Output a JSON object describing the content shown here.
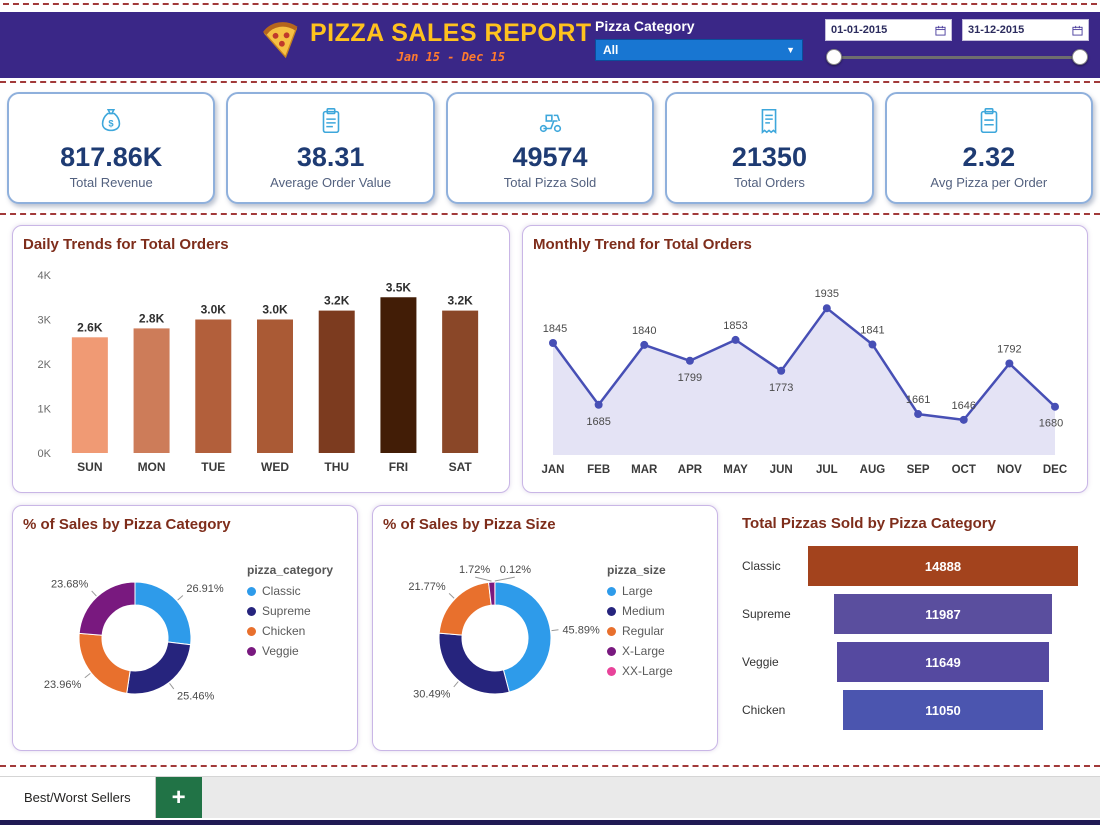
{
  "header": {
    "title": "PIZZA SALES REPORT",
    "subtitle": "Jan 15 - Dec 15",
    "category_label": "Pizza Category",
    "category_value": "All",
    "date_from": "01-01-2015",
    "date_to": "31-12-2015"
  },
  "kpis": [
    {
      "icon": "cash-register-icon",
      "value": "817.86K",
      "label": "Total Revenue"
    },
    {
      "icon": "clipboard-icon",
      "value": "38.31",
      "label": "Average Order Value"
    },
    {
      "icon": "delivery-scooter-icon",
      "value": "49574",
      "label": "Total Pizza Sold"
    },
    {
      "icon": "receipt-icon",
      "value": "21350",
      "label": "Total Orders"
    },
    {
      "icon": "order-note-icon",
      "value": "2.32",
      "label": "Avg Pizza per Order"
    }
  ],
  "chart_data": [
    {
      "id": "daily",
      "type": "bar",
      "title": "Daily Trends for Total Orders",
      "categories": [
        "SUN",
        "MON",
        "TUE",
        "WED",
        "THU",
        "FRI",
        "SAT"
      ],
      "values": [
        2600,
        2800,
        3000,
        3000,
        3200,
        3500,
        3200
      ],
      "labels": [
        "2.6K",
        "2.8K",
        "3.0K",
        "3.0K",
        "3.2K",
        "3.5K",
        "3.2K"
      ],
      "bar_colors": [
        "#F09A74",
        "#CD7C59",
        "#B25F3B",
        "#AA5A35",
        "#7C3B1F",
        "#421D06",
        "#8A4728"
      ],
      "ylim": [
        0,
        4000
      ],
      "yticks": [
        "0K",
        "1K",
        "2K",
        "3K",
        "4K"
      ]
    },
    {
      "id": "monthly",
      "type": "line",
      "title": "Monthly Trend for Total Orders",
      "categories": [
        "JAN",
        "FEB",
        "MAR",
        "APR",
        "MAY",
        "JUN",
        "JUL",
        "AUG",
        "SEP",
        "OCT",
        "NOV",
        "DEC"
      ],
      "values": [
        1845,
        1685,
        1840,
        1799,
        1853,
        1773,
        1935,
        1841,
        1661,
        1646,
        1792,
        1680
      ],
      "label_positions": [
        "above",
        "below",
        "above",
        "below",
        "above",
        "below",
        "above",
        "above",
        "above",
        "above",
        "above",
        "below"
      ],
      "line_color": "#474FB5",
      "fill_color": "#E4E3F5",
      "ylim": [
        1555,
        1990
      ]
    },
    {
      "id": "category-donut",
      "type": "pie",
      "title": "% of Sales by Pizza Category",
      "legend_title": "pizza_category",
      "slices": [
        {
          "label": "Classic",
          "value": 26.91,
          "pct": "26.91%",
          "color": "#2E9BEA"
        },
        {
          "label": "Supreme",
          "value": 25.46,
          "pct": "25.46%",
          "color": "#26247D"
        },
        {
          "label": "Chicken",
          "value": 23.96,
          "pct": "23.96%",
          "color": "#E8702D"
        },
        {
          "label": "Veggie",
          "value": 23.68,
          "pct": "23.68%",
          "color": "#79197F"
        }
      ]
    },
    {
      "id": "size-donut",
      "type": "pie",
      "title": "% of Sales by Pizza Size",
      "legend_title": "pizza_size",
      "slices": [
        {
          "label": "Large",
          "value": 45.89,
          "pct": "45.89%",
          "color": "#2E9BEA"
        },
        {
          "label": "Medium",
          "value": 30.49,
          "pct": "30.49%",
          "color": "#26247D"
        },
        {
          "label": "Regular",
          "value": 21.77,
          "pct": "21.77%",
          "color": "#E8702D"
        },
        {
          "label": "X-Large",
          "value": 1.72,
          "pct": "1.72%",
          "color": "#79197F",
          "label_angle": 342
        },
        {
          "label": "XX-Large",
          "value": 0.12,
          "pct": "0.12%",
          "color": "#E8439A",
          "label_angle": 18
        }
      ]
    },
    {
      "id": "category-funnel",
      "type": "funnel",
      "title": "Total Pizzas Sold by Pizza Category",
      "categories": [
        "Classic",
        "Supreme",
        "Veggie",
        "Chicken"
      ],
      "values": [
        14888,
        11987,
        11649,
        11050
      ],
      "labels": [
        "14888",
        "11987",
        "11649",
        "11050"
      ],
      "bar_colors": [
        "#A3431D",
        "#5A4E9E",
        "#5549A0",
        "#4B55AF"
      ]
    }
  ],
  "footer": {
    "tab_label": "Best/Worst Sellers",
    "add_label": "+"
  }
}
